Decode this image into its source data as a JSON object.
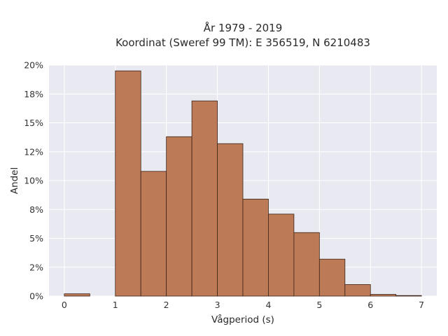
{
  "chart_data": {
    "type": "bar",
    "title_line1": "År 1979 - 2019",
    "title_line2": "Koordinat (Sweref 99 TM): E 356519, N 6210483",
    "xlabel": "Vågperiod (s)",
    "ylabel": "Andel",
    "xlim": [
      -0.3,
      7.3
    ],
    "ylim": [
      0,
      0.2
    ],
    "bin_width": 0.5,
    "bins": [
      {
        "start": 0.0,
        "value": 0.002
      },
      {
        "start": 0.5,
        "value": 0.0
      },
      {
        "start": 1.0,
        "value": 0.195
      },
      {
        "start": 1.5,
        "value": 0.108
      },
      {
        "start": 2.0,
        "value": 0.138
      },
      {
        "start": 2.5,
        "value": 0.169
      },
      {
        "start": 3.0,
        "value": 0.132
      },
      {
        "start": 3.5,
        "value": 0.084
      },
      {
        "start": 4.0,
        "value": 0.071
      },
      {
        "start": 4.5,
        "value": 0.055
      },
      {
        "start": 5.0,
        "value": 0.032
      },
      {
        "start": 5.5,
        "value": 0.01
      },
      {
        "start": 6.0,
        "value": 0.0015
      },
      {
        "start": 6.5,
        "value": 0.0005
      }
    ],
    "xticks": [
      0,
      1,
      2,
      3,
      4,
      5,
      6,
      7
    ],
    "xtick_labels": [
      "0",
      "1",
      "2",
      "3",
      "4",
      "5",
      "6",
      "7"
    ],
    "yticks": [
      0,
      0.025,
      0.05,
      0.075,
      0.1,
      0.125,
      0.15,
      0.175,
      0.2
    ],
    "ytick_labels": [
      "0%",
      "2%",
      "5%",
      "8%",
      "10%",
      "12%",
      "15%",
      "18%",
      "20%"
    ],
    "grid": true,
    "bar_color": "#bd7a56",
    "background_color": "#e9e9f1"
  }
}
